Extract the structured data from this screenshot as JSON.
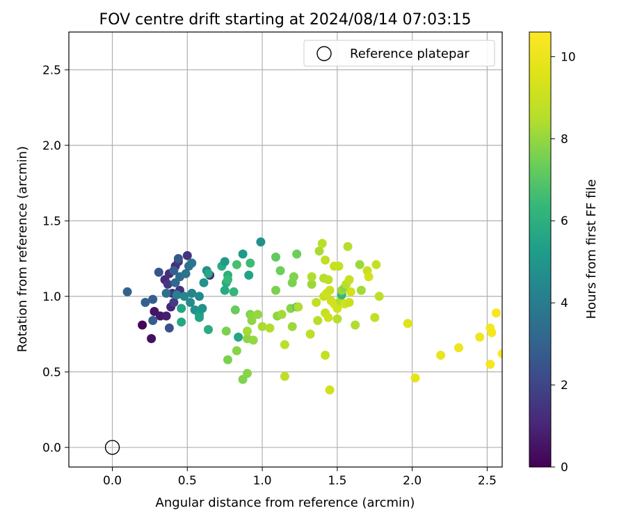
{
  "chart_data": {
    "type": "scatter",
    "title": "FOV centre drift starting at 2024/08/14 07:03:15",
    "xlabel": "Angular distance from reference (arcmin)",
    "ylabel": "Rotation from reference (arcmin)",
    "colorbar_label": "Hours from first FF file",
    "xlim": [
      -0.29,
      2.6
    ],
    "ylim": [
      -0.13,
      2.75
    ],
    "clim": [
      0,
      10.6
    ],
    "colormap": "viridis",
    "grid": true,
    "legend_position": "top-right",
    "xticks": [
      0.0,
      0.5,
      1.0,
      1.5,
      2.0,
      2.5
    ],
    "xtick_labels": [
      "0.0",
      "0.5",
      "1.0",
      "1.5",
      "2.0",
      "2.5"
    ],
    "yticks": [
      0.0,
      0.5,
      1.0,
      1.5,
      2.0,
      2.5
    ],
    "ytick_labels": [
      "0.0",
      "0.5",
      "1.0",
      "1.5",
      "2.0",
      "2.5"
    ],
    "cticks": [
      0,
      2,
      4,
      6,
      8,
      10
    ],
    "ctick_labels": [
      "0",
      "2",
      "4",
      "6",
      "8",
      "10"
    ],
    "reference": {
      "name": "Reference platepar",
      "x": 0.0,
      "y": 0.0
    },
    "series": [
      {
        "points": [
          [
            0.2,
            0.81,
            0.1
          ],
          [
            0.26,
            0.72,
            0.4
          ],
          [
            0.28,
            0.9,
            0.5
          ],
          [
            0.32,
            0.87,
            0.6
          ],
          [
            0.36,
            0.87,
            0.8
          ],
          [
            0.39,
            0.93,
            1.0
          ],
          [
            0.35,
            1.11,
            1.1
          ],
          [
            0.38,
            1.15,
            1.2
          ],
          [
            0.42,
            1.2,
            1.2
          ],
          [
            0.44,
            1.23,
            1.4
          ],
          [
            0.5,
            1.27,
            1.5
          ],
          [
            0.65,
            1.14,
            1.0
          ],
          [
            0.4,
            1.02,
            1.3
          ],
          [
            0.45,
            1.04,
            1.4
          ],
          [
            0.37,
            1.08,
            1.6
          ],
          [
            0.41,
            0.96,
            1.7
          ],
          [
            0.38,
            0.79,
            2.4
          ],
          [
            0.27,
            0.84,
            2.8
          ],
          [
            0.27,
            0.98,
            2.8
          ],
          [
            0.22,
            0.96,
            2.9
          ],
          [
            0.1,
            1.03,
            3.0
          ],
          [
            0.31,
            1.16,
            2.5
          ],
          [
            0.36,
            1.02,
            3.5
          ],
          [
            0.42,
            1.09,
            3.2
          ],
          [
            0.45,
            1.13,
            3.3
          ],
          [
            0.49,
            1.15,
            3.6
          ],
          [
            0.51,
            1.2,
            3.5
          ],
          [
            0.53,
            1.22,
            3.7
          ],
          [
            0.44,
            1.25,
            2.6
          ],
          [
            0.41,
            1.17,
            2.9
          ],
          [
            0.43,
            1.01,
            4.1
          ],
          [
            0.46,
            0.92,
            5.6
          ],
          [
            0.46,
            0.83,
            5.7
          ],
          [
            0.48,
            1.0,
            4.4
          ],
          [
            0.52,
            0.96,
            4.6
          ],
          [
            0.55,
            0.91,
            4.8
          ],
          [
            0.53,
            1.02,
            4.3
          ],
          [
            0.58,
            1.0,
            4.5
          ],
          [
            0.58,
            0.88,
            5.3
          ],
          [
            0.6,
            0.92,
            4.9
          ],
          [
            0.58,
            0.86,
            5.5
          ],
          [
            0.61,
            1.09,
            4.9
          ],
          [
            0.63,
            1.17,
            4.6
          ],
          [
            0.64,
            1.15,
            5.7
          ],
          [
            0.64,
            0.78,
            5.9
          ],
          [
            0.73,
            1.2,
            5.9
          ],
          [
            0.75,
            1.23,
            5.2
          ],
          [
            0.76,
            1.09,
            5.8
          ],
          [
            0.75,
            1.04,
            5.8
          ],
          [
            0.77,
            1.14,
            6.0
          ],
          [
            0.77,
            1.11,
            6.4
          ],
          [
            0.81,
            1.03,
            6.3
          ],
          [
            0.87,
            1.28,
            5.2
          ],
          [
            0.91,
            1.14,
            5.5
          ],
          [
            0.99,
            1.36,
            4.8
          ],
          [
            0.84,
            0.73,
            5.6
          ],
          [
            0.92,
            1.22,
            6.5
          ],
          [
            0.83,
            1.21,
            6.7
          ],
          [
            0.82,
            0.91,
            7.3
          ],
          [
            0.76,
            0.77,
            7.6
          ],
          [
            0.77,
            0.58,
            7.6
          ],
          [
            0.83,
            0.64,
            7.8
          ],
          [
            0.87,
            0.45,
            7.7
          ],
          [
            0.9,
            0.49,
            7.8
          ],
          [
            0.9,
            0.72,
            7.9
          ],
          [
            0.94,
            0.71,
            8.0
          ],
          [
            0.92,
            0.88,
            7.6
          ],
          [
            0.93,
            0.87,
            7.9
          ],
          [
            0.97,
            0.88,
            8.0
          ],
          [
            1.0,
            0.8,
            8.3
          ],
          [
            1.05,
            0.79,
            8.4
          ],
          [
            0.93,
            0.84,
            7.9
          ],
          [
            0.9,
            0.77,
            8.2
          ],
          [
            1.09,
            1.26,
            7.2
          ],
          [
            1.09,
            1.04,
            7.6
          ],
          [
            1.12,
            1.17,
            7.4
          ],
          [
            1.1,
            0.87,
            7.9
          ],
          [
            1.13,
            0.88,
            8.2
          ],
          [
            1.19,
            0.92,
            7.8
          ],
          [
            1.2,
            1.09,
            7.6
          ],
          [
            1.21,
            1.13,
            7.7
          ],
          [
            1.23,
            1.28,
            7.4
          ],
          [
            1.23,
            0.93,
            6.9
          ],
          [
            1.24,
            0.93,
            8.4
          ],
          [
            1.2,
            0.8,
            8.1
          ],
          [
            1.15,
            0.68,
            8.6
          ],
          [
            1.15,
            0.47,
            8.7
          ],
          [
            1.32,
            0.75,
            8.7
          ],
          [
            1.33,
            1.08,
            8.1
          ],
          [
            1.33,
            1.13,
            8.4
          ],
          [
            1.36,
            0.96,
            8.8
          ],
          [
            1.37,
            0.84,
            8.5
          ],
          [
            1.38,
            1.3,
            8.3
          ],
          [
            1.4,
            1.35,
            8.6
          ],
          [
            1.41,
            1.12,
            8.5
          ],
          [
            1.41,
            1.0,
            9.0
          ],
          [
            1.42,
            0.61,
            8.9
          ],
          [
            1.42,
            1.24,
            8.8
          ],
          [
            1.42,
            0.89,
            8.9
          ],
          [
            1.43,
            1.02,
            9.1
          ],
          [
            1.44,
            0.86,
            9.1
          ],
          [
            1.44,
            1.11,
            8.7
          ],
          [
            1.45,
            1.04,
            9.0
          ],
          [
            1.46,
            0.97,
            9.1
          ],
          [
            1.48,
            0.95,
            9.3
          ],
          [
            1.48,
            1.2,
            9.0
          ],
          [
            1.5,
            0.92,
            9.2
          ],
          [
            1.5,
            0.85,
            8.5
          ],
          [
            1.51,
            1.2,
            8.9
          ],
          [
            1.45,
            0.38,
            9.2
          ],
          [
            1.52,
            0.97,
            8.4
          ],
          [
            1.53,
            1.01,
            6.4
          ],
          [
            1.53,
            1.04,
            8.1
          ],
          [
            1.55,
            1.06,
            7.8
          ],
          [
            1.55,
            0.95,
            9.2
          ],
          [
            1.56,
            1.08,
            8.6
          ],
          [
            1.57,
            1.33,
            8.5
          ],
          [
            1.58,
            1.11,
            8.9
          ],
          [
            1.58,
            0.96,
            9.0
          ],
          [
            1.59,
            1.03,
            9.2
          ],
          [
            1.62,
            0.81,
            8.4
          ],
          [
            1.65,
            1.21,
            8.1
          ],
          [
            1.66,
            1.04,
            8.2
          ],
          [
            1.7,
            1.17,
            9.0
          ],
          [
            1.71,
            1.13,
            9.3
          ],
          [
            1.75,
            0.86,
            8.8
          ],
          [
            1.76,
            1.21,
            8.9
          ],
          [
            1.78,
            1.0,
            8.7
          ],
          [
            1.97,
            0.82,
            9.6
          ],
          [
            2.02,
            0.46,
            9.8
          ],
          [
            2.19,
            0.61,
            10.0
          ],
          [
            2.31,
            0.66,
            10.1
          ],
          [
            2.45,
            0.73,
            10.2
          ],
          [
            2.52,
            0.55,
            10.3
          ],
          [
            2.52,
            0.79,
            10.3
          ],
          [
            2.53,
            0.76,
            10.3
          ],
          [
            2.56,
            0.89,
            10.4
          ],
          [
            2.6,
            0.62,
            10.5
          ]
        ]
      }
    ]
  }
}
